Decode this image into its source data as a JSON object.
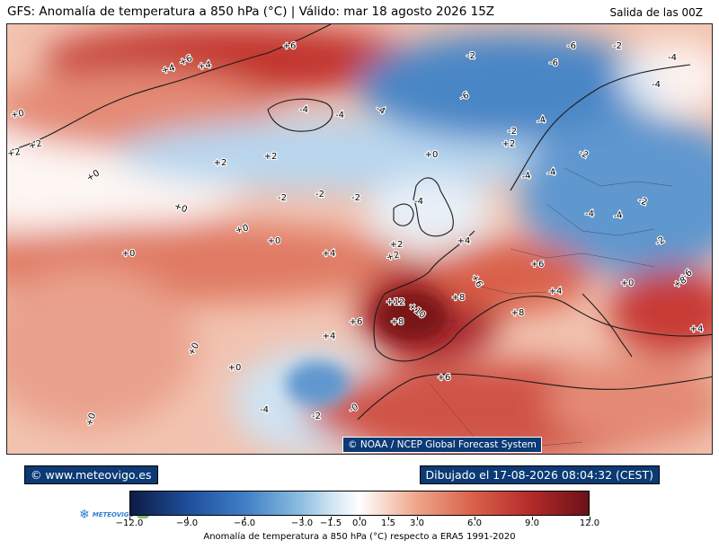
{
  "header": {
    "title": "GFS: Anomalía de temperatura a 850 hPa (°C) | Válido: mar 18 agosto 2026 15Z",
    "run": "Salida de las 00Z"
  },
  "map": {
    "credit": "© NOAA / NCEP Global Forecast System",
    "labels": [
      "+6",
      "+6",
      "+4",
      "+4",
      "+0",
      "+2",
      "+2",
      "+0",
      "+2",
      "+2",
      "+0",
      "-2",
      "-2",
      "-2",
      "+0",
      "+0",
      "+0",
      "+4",
      "+2",
      "+2",
      "+4",
      "-4",
      "-4",
      "-4",
      "-6",
      "-2",
      "-4",
      "-6",
      "-6",
      "-2",
      "-4",
      "-4",
      "-2",
      "-2",
      "-4",
      "-4",
      "-4",
      "-4",
      "-2",
      "-2",
      "-4",
      "+0",
      "+2",
      "+6",
      "+6",
      "+8",
      "+12",
      "+10",
      "+8",
      "+6",
      "+4",
      "+8",
      "+6",
      "+4",
      "+4",
      "+6",
      "+8",
      "+0",
      "+0",
      "+0",
      "-4",
      "-2",
      "-0",
      "+0"
    ]
  },
  "footer": {
    "site": "© www.meteovigo.es",
    "drawn": "Dibujado el 17-08-2026 08:04:32 (CEST)",
    "logo_text": "METEOVIGO"
  },
  "colorbar": {
    "ticks": [
      "−12.0",
      "−9.0",
      "−6.0",
      "−3.0",
      "−1.5",
      "0.0",
      "1.5",
      "3.0",
      "6.0",
      "9.0",
      "12.0"
    ],
    "tick_values": [
      -12,
      -9,
      -6,
      -3,
      -1.5,
      0,
      1.5,
      3,
      6,
      9,
      12
    ],
    "caption": "Anomalía de temperatura a 850 hPa (°C) respecto a ERA5 1991-2020",
    "colors": [
      "#0d1b45",
      "#1f4e9a",
      "#3f7fc6",
      "#8fbfe2",
      "#cfe3f2",
      "#ffffff",
      "#f7d2c4",
      "#eea58a",
      "#d9604a",
      "#b32a2a",
      "#6b1118"
    ]
  }
}
